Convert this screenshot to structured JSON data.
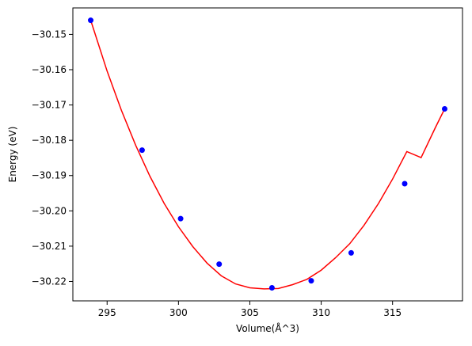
{
  "chart_data": {
    "type": "scatter",
    "title": "",
    "xlabel": "Volume(Å^3)",
    "ylabel": "Energy (eV)",
    "xlim": [
      292.6,
      319.9
    ],
    "ylim": [
      -30.2255,
      -30.1425
    ],
    "xticks": [
      295,
      300,
      305,
      310,
      315
    ],
    "xtick_labels": [
      "295",
      "300",
      "305",
      "310",
      "315"
    ],
    "yticks": [
      -30.15,
      -30.16,
      -30.17,
      -30.18,
      -30.19,
      -30.2,
      -30.21,
      -30.22
    ],
    "ytick_labels": [
      "−30.15",
      "−30.16",
      "−30.17",
      "−30.18",
      "−30.19",
      "−30.20",
      "−30.21",
      "−30.22"
    ],
    "grid": false,
    "series": [
      {
        "kind": "points",
        "color": "#0000ff",
        "x": [
          293.85,
          297.45,
          300.15,
          302.85,
          306.55,
          309.3,
          312.1,
          315.85,
          318.65
        ],
        "y": [
          -30.146,
          -30.1828,
          -30.2022,
          -30.2151,
          -30.2218,
          -30.2198,
          -30.2119,
          -30.1923,
          -30.1711
        ]
      },
      {
        "kind": "fit-curve",
        "color": "#ff0000",
        "x": [
          293.85,
          295.0,
          296.0,
          297.0,
          298.0,
          299.0,
          300.0,
          301.0,
          302.0,
          303.0,
          304.0,
          305.0,
          306.0,
          307.0,
          308.0,
          309.0,
          310.0,
          311.0,
          312.0,
          313.0,
          314.0,
          315.0,
          316.0,
          317.0,
          318.0,
          318.65
        ],
        "y": [
          -30.146,
          -30.1604,
          -30.1715,
          -30.1814,
          -30.1902,
          -30.1979,
          -30.2045,
          -30.2101,
          -30.2148,
          -30.2184,
          -30.2207,
          -30.2218,
          -30.2221,
          -30.222,
          -30.2209,
          -30.2194,
          -30.2168,
          -30.2133,
          -30.2093,
          -30.2041,
          -30.198,
          -30.191,
          -30.1832,
          -30.1849,
          -30.1764,
          -30.1711
        ]
      }
    ]
  }
}
